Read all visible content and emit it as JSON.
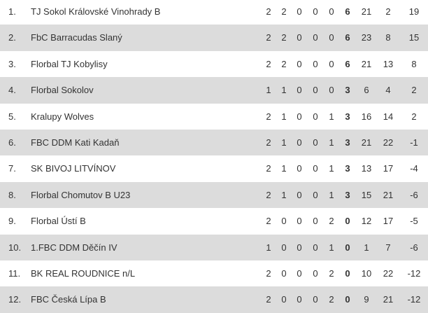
{
  "table": {
    "rows": [
      [
        "1.",
        "TJ Sokol Královské Vinohrady B",
        2,
        2,
        0,
        0,
        0,
        6,
        21,
        2,
        19
      ],
      [
        "2.",
        "FbC Barracudas Slaný",
        2,
        2,
        0,
        0,
        0,
        6,
        23,
        8,
        15
      ],
      [
        "3.",
        "Florbal TJ Kobylisy",
        2,
        2,
        0,
        0,
        0,
        6,
        21,
        13,
        8
      ],
      [
        "4.",
        "Florbal Sokolov",
        1,
        1,
        0,
        0,
        0,
        3,
        6,
        4,
        2
      ],
      [
        "5.",
        "Kralupy Wolves",
        2,
        1,
        0,
        0,
        1,
        3,
        16,
        14,
        2
      ],
      [
        "6.",
        "FBC DDM Kati Kadaň",
        2,
        1,
        0,
        0,
        1,
        3,
        21,
        22,
        -1
      ],
      [
        "7.",
        "SK BIVOJ LITVÍNOV",
        2,
        1,
        0,
        0,
        1,
        3,
        13,
        17,
        -4
      ],
      [
        "8.",
        "Florbal Chomutov B U23",
        2,
        1,
        0,
        0,
        1,
        3,
        15,
        21,
        -6
      ],
      [
        "9.",
        "Florbal Ústí B",
        2,
        0,
        0,
        0,
        2,
        0,
        12,
        17,
        -5
      ],
      [
        "10.",
        "1.FBC DDM Děčín IV",
        1,
        0,
        0,
        0,
        1,
        0,
        1,
        7,
        -6
      ],
      [
        "11.",
        "BK REAL ROUDNICE n/L",
        2,
        0,
        0,
        0,
        2,
        0,
        10,
        22,
        -12
      ],
      [
        "12.",
        "FBC Česká Lípa B",
        2,
        0,
        0,
        0,
        2,
        0,
        9,
        21,
        -12
      ]
    ]
  }
}
